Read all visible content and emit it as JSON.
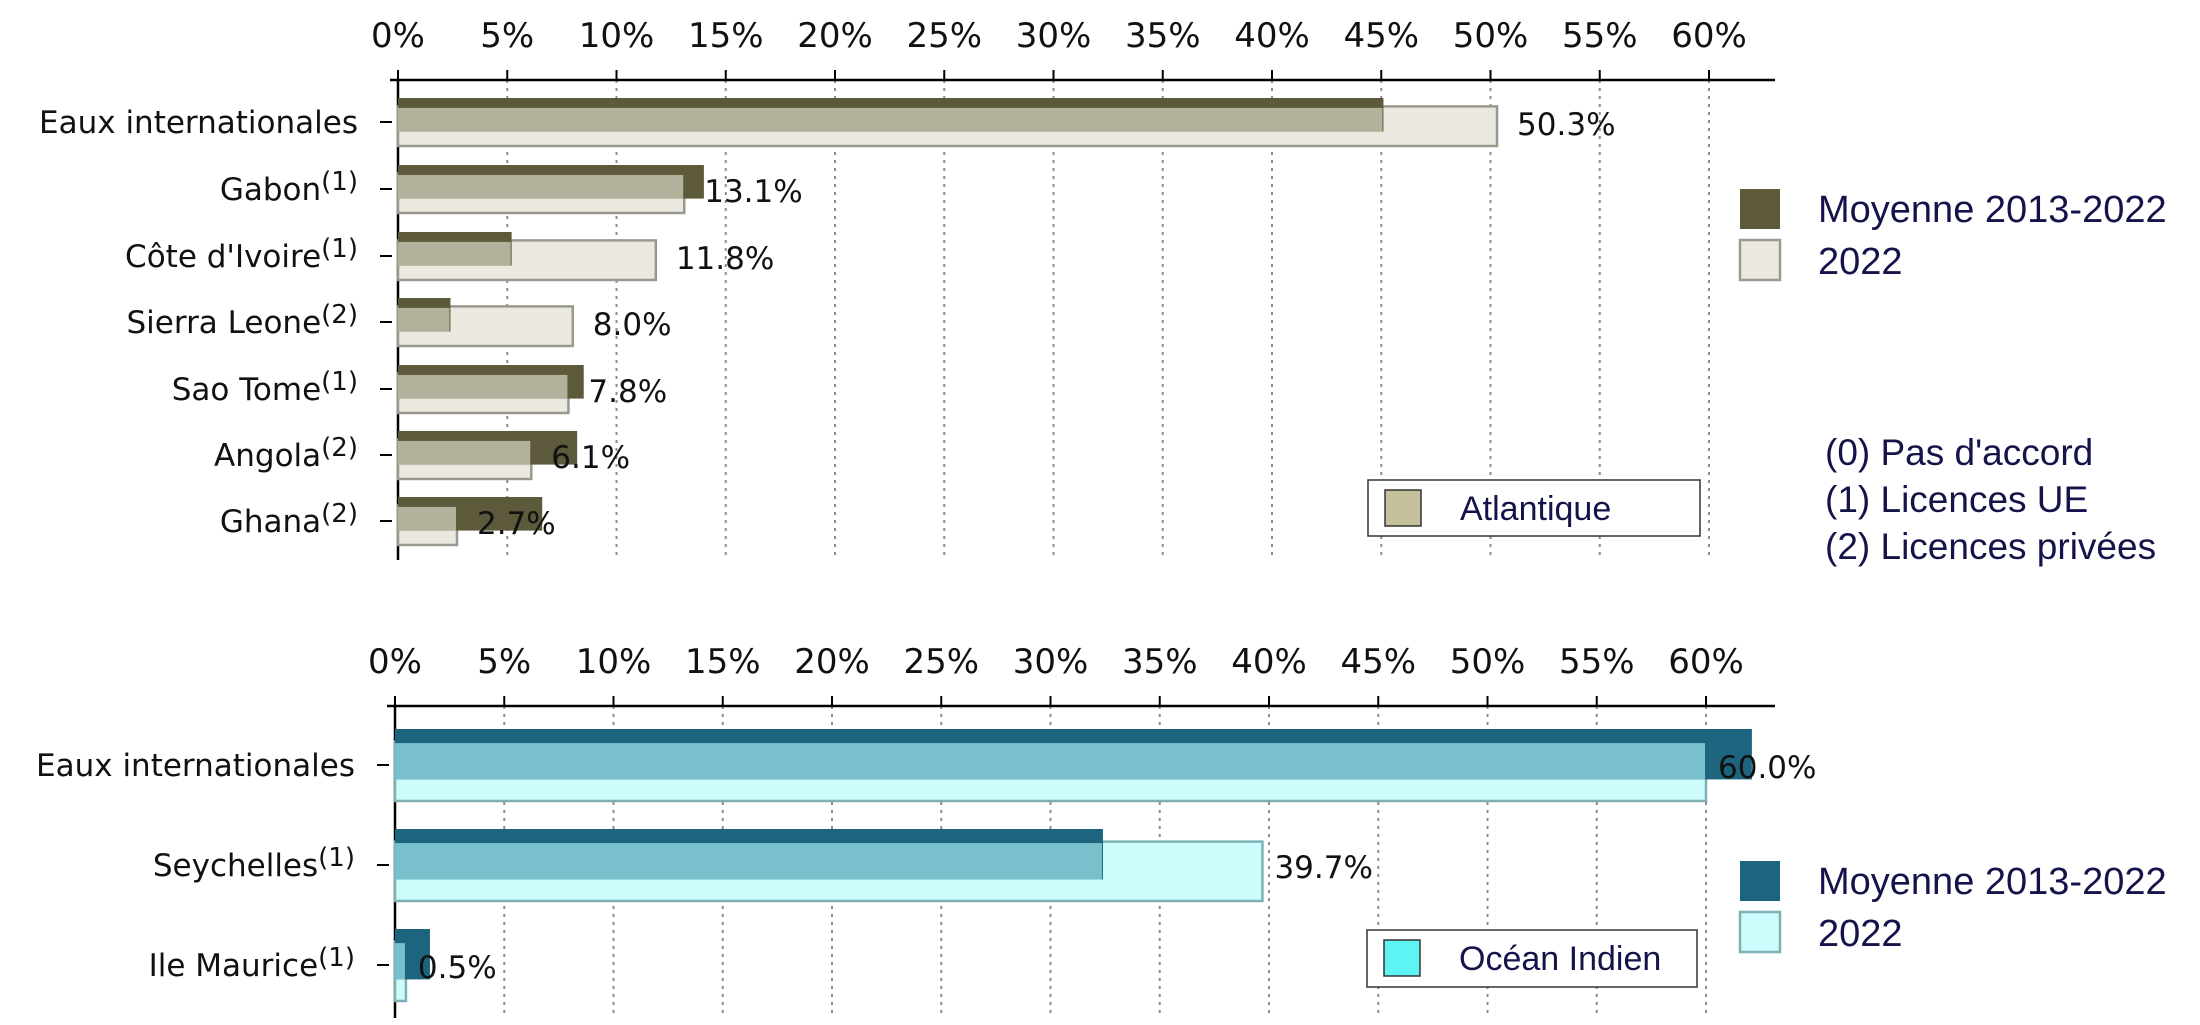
{
  "chart_data": [
    {
      "type": "bar",
      "orientation": "horizontal",
      "region": "Atlantique",
      "categories": [
        "Eaux internationales",
        "Gabon",
        "Côte d'Ivoire",
        "Sierra Leone",
        "Sao Tome",
        "Angola",
        "Ghana"
      ],
      "category_notes": [
        "",
        "(1)",
        "(1)",
        "(2)",
        "(1)",
        "(2)",
        "(2)"
      ],
      "series": [
        {
          "name": "Moyenne 2013-2022",
          "values": [
            45.1,
            14.0,
            5.2,
            2.4,
            8.5,
            8.2,
            6.6
          ],
          "color": "#5c5a3b"
        },
        {
          "name": "2022",
          "values": [
            50.3,
            13.1,
            11.8,
            8.0,
            7.8,
            6.1,
            2.7
          ],
          "color": "#ebe9df",
          "stroke": "#9a998f"
        }
      ],
      "overlap_color": "#b2b19b",
      "value_labels": [
        "50.3%",
        "13.1%",
        "11.8%",
        "8.0%",
        "7.8%",
        "6.1%",
        "2.7%"
      ],
      "xlim": [
        0,
        63
      ],
      "ticks": [
        "0%",
        "5%",
        "10%",
        "15%",
        "20%",
        "25%",
        "30%",
        "35%",
        "40%",
        "45%",
        "50%",
        "55%",
        "60%"
      ],
      "grid": true,
      "legend_position": "right",
      "region_swatch": "#c4c19a"
    },
    {
      "type": "bar",
      "orientation": "horizontal",
      "region": "Océan Indien",
      "categories": [
        "Eaux internationales",
        "Seychelles",
        "Ile Maurice"
      ],
      "category_notes": [
        "",
        "(1)",
        "(1)"
      ],
      "series": [
        {
          "name": "Moyenne 2013-2022",
          "values": [
            62.1,
            32.4,
            1.6
          ],
          "color": "#1d657f"
        },
        {
          "name": "2022",
          "values": [
            60.0,
            39.7,
            0.5
          ],
          "color": "#ccfcfc",
          "stroke": "#7fb0b3"
        }
      ],
      "overlap_color": "#79c0cc",
      "value_labels": [
        "60.0%",
        "39.7%",
        "0.5%"
      ],
      "xlim": [
        0,
        63
      ],
      "ticks": [
        "0%",
        "5%",
        "10%",
        "15%",
        "20%",
        "25%",
        "30%",
        "35%",
        "40%",
        "45%",
        "50%",
        "55%",
        "60%"
      ],
      "grid": true,
      "legend_position": "right",
      "region_swatch": "#5ef4f4"
    }
  ],
  "notes": [
    "(0) Pas d'accord",
    "(1) Licences UE",
    "(2) Licences privées"
  ]
}
